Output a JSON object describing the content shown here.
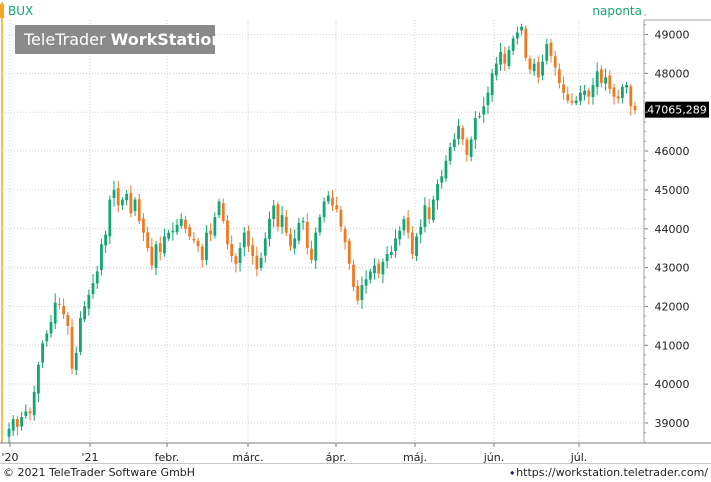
{
  "app": {
    "symbol": "BUX",
    "period": "naponta",
    "watermark": "TeleTrader WorkStation",
    "watermark_normal": "TeleTrader ",
    "watermark_bold": "WorkStation",
    "copyright": "© 2021 TeleTrader Software GmbH",
    "url": "https://workstation.teletrader.com/",
    "colors": {
      "up": "#13a574",
      "down": "#f07a24",
      "grid": "#d0d0d0",
      "accent": "#f5a623",
      "price_box": "#000000"
    }
  },
  "chart_data": {
    "type": "candlestick",
    "title": "BUX",
    "interval_label": "naponta",
    "y_axis": {
      "side": "right",
      "ylim": [
        38350,
        49550
      ],
      "ticks": [
        39000,
        40000,
        41000,
        42000,
        43000,
        44000,
        45000,
        46000,
        47000,
        48000,
        49000
      ],
      "tick_labels": [
        "39000",
        "40000",
        "41000",
        "42000",
        "43000",
        "44000",
        "45000",
        "46000",
        "47000",
        "48000",
        "49000"
      ]
    },
    "x_axis": {
      "labels": [
        "'20",
        "'21",
        "febr.",
        "márc.",
        "ápr.",
        "máj.",
        "jún.",
        "júl."
      ]
    },
    "last_price": 47065.289,
    "last_price_label": "47065,289",
    "grid": true,
    "closes": [
      38850,
      39100,
      38900,
      39150,
      39300,
      39250,
      39800,
      40500,
      41050,
      41300,
      41600,
      42100,
      42050,
      41800,
      41500,
      40400,
      40800,
      41700,
      42000,
      42300,
      42600,
      42900,
      43600,
      43850,
      44750,
      45000,
      44600,
      44750,
      44900,
      44400,
      44750,
      44200,
      43900,
      43500,
      43050,
      43600,
      43400,
      43800,
      43900,
      43950,
      44100,
      44250,
      44000,
      43800,
      43700,
      43550,
      43200,
      43900,
      43850,
      44300,
      44700,
      44200,
      43600,
      43300,
      43100,
      43500,
      43900,
      43550,
      43300,
      42950,
      43250,
      43750,
      44250,
      44600,
      44050,
      44350,
      43900,
      43550,
      43750,
      44150,
      44200,
      43500,
      43200,
      43900,
      44300,
      44700,
      44850,
      44600,
      44500,
      44050,
      43650,
      43100,
      42500,
      42150,
      42550,
      42700,
      42900,
      43050,
      42850,
      43150,
      43350,
      43400,
      43750,
      43950,
      44250,
      43900,
      43350,
      43800,
      44050,
      44600,
      44250,
      44750,
      45150,
      45350,
      45750,
      46100,
      46300,
      46650,
      46300,
      45900,
      46300,
      46850,
      46900,
      47150,
      47500,
      48000,
      48250,
      48550,
      48250,
      48600,
      48900,
      49050,
      49200,
      48400,
      48100,
      48250,
      47900,
      48300,
      48750,
      48450,
      48150,
      47750,
      47500,
      47300,
      47250,
      47300,
      47500,
      47550,
      47400,
      47700,
      48050,
      47750,
      47900,
      47600,
      47400,
      47350,
      47650,
      47700,
      47150,
      47050
    ]
  }
}
